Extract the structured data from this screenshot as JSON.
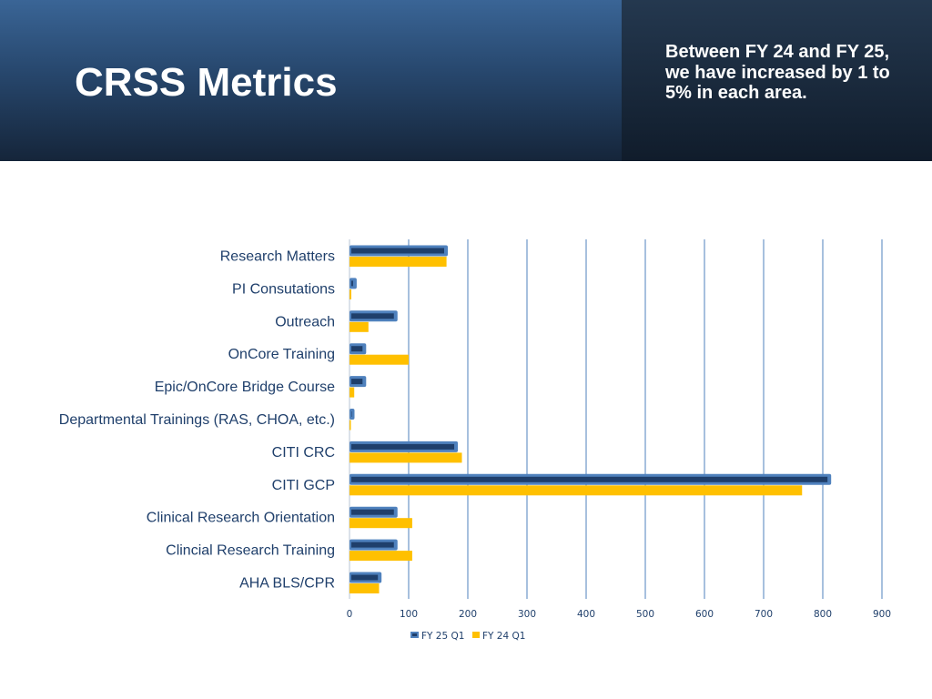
{
  "slide": {
    "title": "CRSS Metrics",
    "subtitle": "Between FY 24 and FY 25, we have increased by 1 to 5% in each area."
  },
  "colors": {
    "header_top": "#3a6596",
    "header_bottom": "#15253a",
    "fy25_fill": "#1f3f6b",
    "fy25_outline": "#4f81bd",
    "fy24_fill": "#ffc000",
    "grid": "#4f81bd",
    "label_text": "#1f3f6b"
  },
  "chart_data": {
    "type": "bar",
    "orientation": "horizontal",
    "categories": [
      "Research Matters",
      "PI Consutations",
      "Outreach",
      "OnCore Training",
      "Epic/OnCore Bridge Course",
      "Departmental Trainings (RAS, CHOA, etc.)",
      "CITI CRC",
      "CITI GCP",
      "Clinical Research Orientation",
      "Clincial Research Training",
      "AHA BLS/CPR"
    ],
    "series": [
      {
        "name": "FY 25 Q1",
        "values": [
          160,
          6,
          75,
          22,
          22,
          2,
          177,
          808,
          75,
          75,
          48
        ]
      },
      {
        "name": "FY 24 Q1",
        "values": [
          164,
          3,
          32,
          100,
          8,
          2,
          190,
          765,
          106,
          106,
          50
        ]
      }
    ],
    "xlim": [
      0,
      900
    ],
    "x_ticks": [
      0,
      100,
      200,
      300,
      400,
      500,
      600,
      700,
      800,
      900
    ],
    "grid": "vertical",
    "legend": "bottom"
  }
}
